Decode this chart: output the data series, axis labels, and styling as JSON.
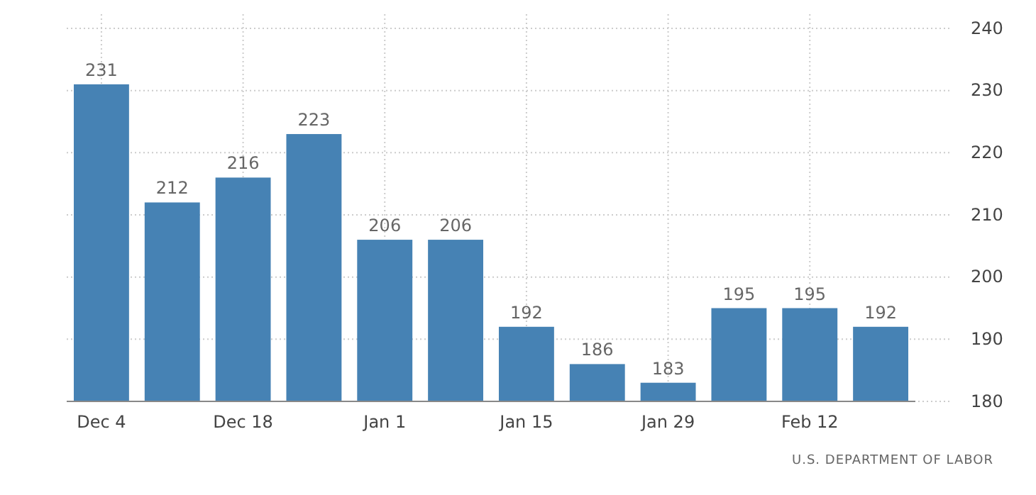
{
  "chart_data": {
    "type": "bar",
    "categories": [
      "Dec 4",
      null,
      "Dec 18",
      null,
      "Jan 1",
      null,
      "Jan 15",
      null,
      "Jan 29",
      null,
      "Feb 12",
      null
    ],
    "values": [
      231,
      212,
      216,
      223,
      206,
      206,
      192,
      186,
      183,
      195,
      195,
      192
    ],
    "color": "#4682b4",
    "ylim": [
      180,
      240
    ],
    "yticks": [
      180,
      190,
      200,
      210,
      220,
      230,
      240
    ],
    "grid": true,
    "data_labels": true,
    "annotations": [
      "U.S. DEPARTMENT OF LABOR"
    ]
  }
}
